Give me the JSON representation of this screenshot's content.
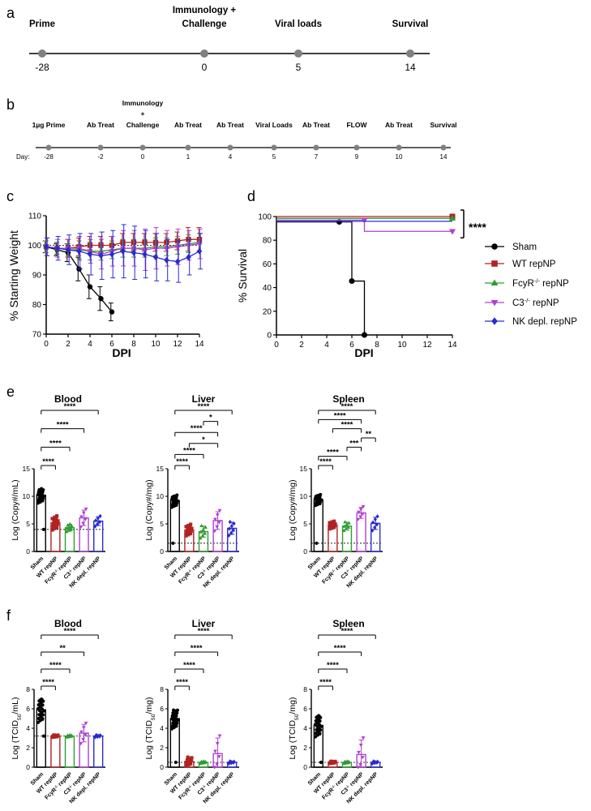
{
  "colors": {
    "sham": "#000000",
    "wt": "#b22222",
    "fcyr": "#2e9d2e",
    "c3": "#b040d0",
    "nk": "#2a2ad0",
    "axis": "#000000",
    "tl_line": "#000000",
    "tl_dot": "#808080"
  },
  "panel_a": {
    "letter": "a",
    "events": [
      {
        "label": "Prime",
        "day": "-28"
      },
      {
        "label": "Immunology +",
        "label2": "Challenge",
        "day": "0"
      },
      {
        "label": "Viral loads",
        "day": "5"
      },
      {
        "label": "Survival",
        "day": "14"
      }
    ]
  },
  "panel_b": {
    "letter": "b",
    "day_prefix": "Day:",
    "events": [
      {
        "label": "1µg Prime",
        "day": "-28"
      },
      {
        "label": "Ab Treat",
        "day": "-2"
      },
      {
        "label": "Immunology",
        "label2": "+",
        "label3": "Challenge",
        "day": "0"
      },
      {
        "label": "Ab Treat",
        "day": "1"
      },
      {
        "label": "Ab Treat",
        "day": "4"
      },
      {
        "label": "Viral Loads",
        "day": "5"
      },
      {
        "label": "Ab Treat",
        "day": "7"
      },
      {
        "label": "FLOW",
        "day": "9"
      },
      {
        "label": "Ab Treat",
        "day": "10"
      },
      {
        "label": "Survival",
        "day": "14"
      }
    ]
  },
  "legend": {
    "entries": [
      {
        "key": "sham",
        "label": "Sham",
        "marker": "circle"
      },
      {
        "key": "wt",
        "label": "WT repNP",
        "marker": "square"
      },
      {
        "key": "fcyr",
        "label": "FcyR",
        "sup": "-/-",
        "suffix": " repNP",
        "marker": "triangle-up"
      },
      {
        "key": "c3",
        "label": "C3",
        "sup": "-/-",
        "suffix": " repNP",
        "marker": "triangle-down"
      },
      {
        "key": "nk",
        "label": "NK depl. repNP",
        "marker": "diamond"
      }
    ]
  },
  "chart_data": [
    {
      "id": "c",
      "letter": "c",
      "type": "line",
      "xlabel": "DPI",
      "ylabel": "% Starting Weight",
      "xlim": [
        0,
        14
      ],
      "ylim": [
        70,
        110
      ],
      "xticks": [
        0,
        2,
        4,
        6,
        8,
        10,
        12,
        14
      ],
      "yticks": [
        70,
        80,
        90,
        100,
        110
      ],
      "series": [
        {
          "key": "sham",
          "name": "Sham",
          "x": [
            0,
            1,
            2,
            3,
            4,
            5,
            6
          ],
          "y": [
            99.5,
            98.5,
            97.5,
            92,
            86,
            82,
            77.5
          ],
          "err": [
            2,
            2,
            3,
            4,
            4,
            4,
            3
          ]
        },
        {
          "key": "wt",
          "name": "WT repNP",
          "x": [
            0,
            1,
            2,
            3,
            4,
            5,
            6,
            7,
            8,
            9,
            10,
            11,
            12,
            13,
            14
          ],
          "y": [
            99.5,
            99,
            99,
            99.5,
            100,
            100,
            100,
            101,
            101,
            101,
            101,
            101,
            101.5,
            102,
            102
          ],
          "err": [
            2,
            2,
            3,
            3,
            3,
            3,
            3,
            3,
            3,
            3,
            3,
            3,
            3,
            4,
            4
          ]
        },
        {
          "key": "fcyr",
          "name": "FcyR-/- repNP",
          "x": [
            0,
            1,
            2,
            3,
            4,
            5,
            6,
            7,
            8,
            9,
            10,
            11,
            12,
            13,
            14
          ],
          "y": [
            99.5,
            99,
            98.5,
            98.5,
            98,
            98,
            98.5,
            99,
            99,
            99,
            99.5,
            99.5,
            100,
            100.5,
            101
          ],
          "err": [
            2,
            2,
            2,
            3,
            3,
            3,
            3,
            3,
            3,
            3,
            3,
            3,
            3,
            3,
            3
          ]
        },
        {
          "key": "c3",
          "name": "C3-/- repNP",
          "x": [
            0,
            1,
            2,
            3,
            4,
            5,
            6,
            7,
            8,
            9,
            10,
            11,
            12,
            13,
            14
          ],
          "y": [
            99.5,
            99,
            99,
            99,
            98,
            97,
            98,
            99,
            99,
            98.5,
            99,
            99,
            99.5,
            100,
            100.5
          ],
          "err": [
            3,
            3,
            3,
            4,
            4,
            5,
            5,
            6,
            6,
            7,
            7,
            6,
            6,
            5,
            5
          ]
        },
        {
          "key": "nk",
          "name": "NK depl. repNP",
          "x": [
            0,
            1,
            2,
            3,
            4,
            5,
            6,
            7,
            8,
            9,
            10,
            11,
            12,
            13,
            14
          ],
          "y": [
            99.5,
            99,
            98.5,
            98,
            97,
            96.5,
            97,
            98,
            97.5,
            97,
            96,
            95,
            94.5,
            96,
            98
          ],
          "err": [
            3,
            4,
            5,
            6,
            7,
            8,
            8,
            9,
            9,
            8,
            8,
            7,
            7,
            6,
            6
          ]
        }
      ]
    },
    {
      "id": "d",
      "letter": "d",
      "type": "line",
      "xlabel": "DPI",
      "ylabel": "% Survival",
      "xlim": [
        0,
        14
      ],
      "ylim": [
        0,
        100
      ],
      "xticks": [
        0,
        2,
        4,
        6,
        8,
        10,
        12,
        14
      ],
      "yticks": [
        0,
        20,
        40,
        60,
        80,
        100
      ],
      "significance": "****",
      "series": [
        {
          "key": "sham",
          "name": "Sham",
          "x": [
            0,
            5,
            6,
            7
          ],
          "y": [
            95.5,
            95.5,
            45.5,
            0
          ],
          "markers_x": [
            5,
            6,
            7
          ],
          "markers_y": [
            95.5,
            45.5,
            0
          ]
        },
        {
          "key": "wt",
          "name": "WT repNP",
          "x": [
            0,
            14
          ],
          "y": [
            100,
            100
          ],
          "markers_x": [
            14
          ],
          "markers_y": [
            100
          ]
        },
        {
          "key": "fcyr",
          "name": "FcyR-/- repNP",
          "x": [
            0,
            14
          ],
          "y": [
            98.5,
            98.5
          ],
          "markers_x": [
            14
          ],
          "markers_y": [
            98.5
          ]
        },
        {
          "key": "c3",
          "name": "C3-/- repNP",
          "x": [
            0,
            7,
            7,
            14
          ],
          "y": [
            97,
            97,
            87.5,
            87.5
          ],
          "markers_x": [
            7,
            14
          ],
          "markers_y": [
            97,
            87.5
          ]
        },
        {
          "key": "nk",
          "name": "NK depl. repNP",
          "x": [
            0,
            14
          ],
          "y": [
            96,
            96
          ],
          "markers_x": [],
          "markers_y": []
        }
      ]
    },
    {
      "id": "e1",
      "letter": "e",
      "type": "bar",
      "title": "Blood",
      "ylabel_pre": "Log (Copy#/mL)",
      "ylim": [
        0,
        15
      ],
      "yticks": [
        0,
        5,
        10,
        15
      ],
      "dotted": 4,
      "categories": [
        {
          "label": "Sham"
        },
        {
          "label": "WT repNP"
        },
        {
          "label": "FcyR",
          "sup": "-/-",
          "suffix": " repNP"
        },
        {
          "label": "C3",
          "sup": "-/-",
          "suffix": " repNP"
        },
        {
          "label": "NK depl. repNP"
        }
      ],
      "values": [
        10.2,
        5.2,
        4.3,
        6.1,
        5.5
      ],
      "err": [
        1.2,
        1.1,
        0.6,
        1.4,
        0.8
      ],
      "npts": [
        20,
        14,
        8,
        6,
        6
      ],
      "brackets": [
        {
          "from": 0,
          "to": 1,
          "label": "****"
        },
        {
          "from": 0,
          "to": 2,
          "label": "****"
        },
        {
          "from": 0,
          "to": 3,
          "label": "****"
        },
        {
          "from": 0,
          "to": 4,
          "label": "****"
        }
      ]
    },
    {
      "id": "e2",
      "letter": "",
      "type": "bar",
      "title": "Liver",
      "ylabel_pre": "Log (Copy#/mg)",
      "ylim": [
        0,
        15
      ],
      "yticks": [
        0,
        5,
        10,
        15
      ],
      "dotted": 1.5,
      "categories": [
        {
          "label": "Sham"
        },
        {
          "label": "WT repNP"
        },
        {
          "label": "FcyR",
          "sup": "-/-",
          "suffix": " repNP"
        },
        {
          "label": "C3",
          "sup": "-/-",
          "suffix": " repNP"
        },
        {
          "label": "NK depl. repNP"
        }
      ],
      "values": [
        9.2,
        3.9,
        3.6,
        5.6,
        4.2
      ],
      "err": [
        1.0,
        0.9,
        1.0,
        1.6,
        1.1
      ],
      "npts": [
        18,
        14,
        7,
        6,
        7
      ],
      "brackets": [
        {
          "from": 0,
          "to": 1,
          "label": "****"
        },
        {
          "from": 0,
          "to": 2,
          "label": "****"
        },
        {
          "from": 1,
          "to": 3,
          "label": "*"
        },
        {
          "from": 0,
          "to": 3,
          "label": "****"
        },
        {
          "from": 2,
          "to": 3,
          "label": "*"
        },
        {
          "from": 0,
          "to": 4,
          "label": "****"
        }
      ]
    },
    {
      "id": "e3",
      "letter": "",
      "type": "bar",
      "title": "Spleen",
      "ylabel_pre": "Log (Copy#/mg)",
      "ylim": [
        0,
        15
      ],
      "yticks": [
        0,
        5,
        10,
        15
      ],
      "dotted": 1.5,
      "categories": [
        {
          "label": "Sham"
        },
        {
          "label": "WT repNP"
        },
        {
          "label": "FcyR",
          "sup": "-/-",
          "suffix": " repNP"
        },
        {
          "label": "C3",
          "sup": "-/-",
          "suffix": " repNP"
        },
        {
          "label": "NK depl. repNP"
        }
      ],
      "values": [
        9.4,
        4.8,
        4.6,
        7.0,
        5.1
      ],
      "err": [
        0.9,
        0.6,
        0.7,
        1.0,
        1.1
      ],
      "npts": [
        18,
        14,
        7,
        6,
        6
      ],
      "brackets": [
        {
          "from": 0,
          "to": 1,
          "label": "****"
        },
        {
          "from": 0,
          "to": 2,
          "label": "****"
        },
        {
          "from": 2,
          "to": 3,
          "label": "***"
        },
        {
          "from": 3,
          "to": 4,
          "label": "**"
        },
        {
          "from": 1,
          "to": 3,
          "label": "****"
        },
        {
          "from": 0,
          "to": 3,
          "label": "****"
        },
        {
          "from": 0,
          "to": 4,
          "label": "****"
        }
      ]
    },
    {
      "id": "f1",
      "letter": "f",
      "type": "bar",
      "title": "Blood",
      "ylabel_pre": "Log (TCID",
      "ylabel_sub": "50",
      "ylabel_post": "/mL)",
      "ylim": [
        0,
        8
      ],
      "yticks": [
        0,
        2,
        4,
        6,
        8
      ],
      "dotted": 3.2,
      "categories": [
        {
          "label": "Sham"
        },
        {
          "label": "WT repNP"
        },
        {
          "label": "FcyR",
          "sup": "-/-",
          "suffix": " repNP"
        },
        {
          "label": "C3",
          "sup": "-/-",
          "suffix": " repNP"
        },
        {
          "label": "NK depl. repNP"
        }
      ],
      "values": [
        5.9,
        3.2,
        3.2,
        3.5,
        3.2
      ],
      "err": [
        1.1,
        0.1,
        0.1,
        0.9,
        0.1
      ],
      "npts": [
        20,
        10,
        8,
        6,
        7
      ],
      "brackets": [
        {
          "from": 0,
          "to": 1,
          "label": "****"
        },
        {
          "from": 0,
          "to": 2,
          "label": "****"
        },
        {
          "from": 0,
          "to": 3,
          "label": "**"
        },
        {
          "from": 0,
          "to": 4,
          "label": "****"
        }
      ]
    },
    {
      "id": "f2",
      "letter": "",
      "type": "bar",
      "title": "Liver",
      "ylabel_pre": "Log (TCID",
      "ylabel_sub": "50",
      "ylabel_post": "/mg)",
      "ylim": [
        0,
        8
      ],
      "yticks": [
        0,
        2,
        4,
        6,
        8
      ],
      "dotted": 0.5,
      "categories": [
        {
          "label": "Sham"
        },
        {
          "label": "WT repNP"
        },
        {
          "label": "FcyR",
          "sup": "-/-",
          "suffix": " repNP"
        },
        {
          "label": "C3",
          "sup": "-/-",
          "suffix": " repNP"
        },
        {
          "label": "NK depl. repNP"
        }
      ],
      "values": [
        5.0,
        0.6,
        0.5,
        1.4,
        0.5
      ],
      "err": [
        0.9,
        0.4,
        0.1,
        1.6,
        0.1
      ],
      "npts": [
        22,
        10,
        8,
        6,
        7
      ],
      "brackets": [
        {
          "from": 0,
          "to": 1,
          "label": "****"
        },
        {
          "from": 0,
          "to": 2,
          "label": "****"
        },
        {
          "from": 0,
          "to": 3,
          "label": "****"
        },
        {
          "from": 0,
          "to": 4,
          "label": "****"
        }
      ]
    },
    {
      "id": "f3",
      "letter": "",
      "type": "bar",
      "title": "Spleen",
      "ylabel_pre": "Log (TCID",
      "ylabel_sub": "50",
      "ylabel_post": "/mg)",
      "ylim": [
        0,
        8
      ],
      "yticks": [
        0,
        2,
        4,
        6,
        8
      ],
      "dotted": 0.5,
      "categories": [
        {
          "label": "Sham"
        },
        {
          "label": "WT repNP"
        },
        {
          "label": "FcyR",
          "sup": "-/-",
          "suffix": " repNP"
        },
        {
          "label": "C3",
          "sup": "-/-",
          "suffix": " repNP"
        },
        {
          "label": "NK depl. repNP"
        }
      ],
      "values": [
        4.3,
        0.5,
        0.5,
        1.3,
        0.5
      ],
      "err": [
        1.0,
        0.1,
        0.1,
        1.5,
        0.1
      ],
      "npts": [
        20,
        10,
        8,
        6,
        7
      ],
      "brackets": [
        {
          "from": 0,
          "to": 1,
          "label": "****"
        },
        {
          "from": 0,
          "to": 2,
          "label": "****"
        },
        {
          "from": 0,
          "to": 3,
          "label": "****"
        },
        {
          "from": 0,
          "to": 4,
          "label": "****"
        }
      ]
    }
  ]
}
